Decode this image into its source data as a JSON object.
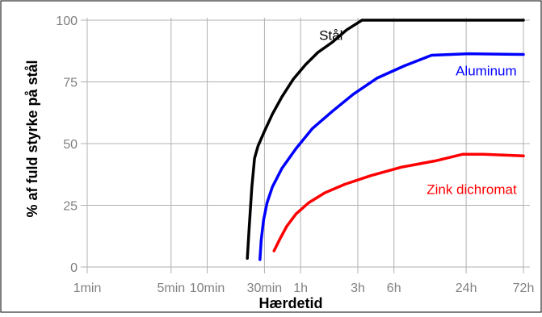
{
  "chart_data": {
    "type": "line",
    "title": "",
    "xlabel": "Hærdetid",
    "ylabel": "% af fuld styrke på stål",
    "x_scale": "log",
    "x_unit": "minutes",
    "x_ticks": [
      {
        "label": "1min",
        "value": 1
      },
      {
        "label": "5min",
        "value": 5
      },
      {
        "label": "10min",
        "value": 10
      },
      {
        "label": "30min",
        "value": 30
      },
      {
        "label": "1h",
        "value": 60
      },
      {
        "label": "3h",
        "value": 180
      },
      {
        "label": "6h",
        "value": 360
      },
      {
        "label": "24h",
        "value": 1440
      },
      {
        "label": "72h",
        "value": 4320
      }
    ],
    "y_ticks": [
      {
        "label": "0",
        "value": 0
      },
      {
        "label": "25",
        "value": 25
      },
      {
        "label": "50",
        "value": 50
      },
      {
        "label": "75",
        "value": 75
      },
      {
        "label": "100",
        "value": 100
      }
    ],
    "ylim": [
      0,
      100
    ],
    "grid": true,
    "legend": "labels placed next to each line",
    "series": [
      {
        "name": "Stål",
        "color": "#000000",
        "points": [
          [
            21.6,
            3.5
          ],
          [
            22.3,
            15
          ],
          [
            23.5,
            32
          ],
          [
            24.8,
            44
          ],
          [
            26.5,
            49
          ],
          [
            30,
            55
          ],
          [
            35,
            62
          ],
          [
            42,
            69
          ],
          [
            52,
            76
          ],
          [
            66,
            82
          ],
          [
            84,
            87
          ],
          [
            110,
            91
          ],
          [
            145,
            96
          ],
          [
            195,
            100
          ],
          [
            4320,
            100
          ]
        ]
      },
      {
        "name": "Aluminum",
        "color": "#0000ff",
        "points": [
          [
            27.5,
            3
          ],
          [
            28.2,
            11
          ],
          [
            29.5,
            19
          ],
          [
            31.5,
            26
          ],
          [
            35,
            32.5
          ],
          [
            42,
            40
          ],
          [
            55,
            48
          ],
          [
            75,
            56
          ],
          [
            110,
            63
          ],
          [
            165,
            70
          ],
          [
            260,
            76.5
          ],
          [
            440,
            81.5
          ],
          [
            740,
            85.8
          ],
          [
            1500,
            86.4
          ],
          [
            4320,
            86.1
          ]
        ]
      },
      {
        "name": "Zink dichromat",
        "color": "#ff0000",
        "points": [
          [
            36,
            6.5
          ],
          [
            40,
            11
          ],
          [
            46,
            16.5
          ],
          [
            55,
            21.5
          ],
          [
            70,
            26
          ],
          [
            95,
            30
          ],
          [
            140,
            33.5
          ],
          [
            230,
            37
          ],
          [
            420,
            40.5
          ],
          [
            800,
            43
          ],
          [
            1350,
            45.7
          ],
          [
            2000,
            45.7
          ],
          [
            4320,
            45
          ]
        ]
      }
    ]
  }
}
